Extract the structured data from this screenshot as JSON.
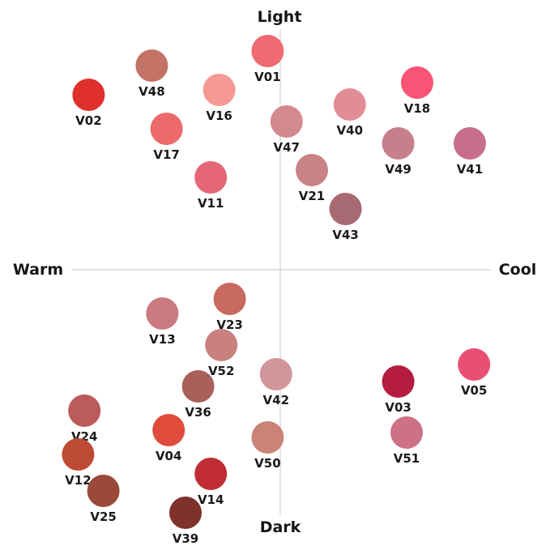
{
  "chart_data": {
    "type": "scatter",
    "title": "",
    "axis_labels": {
      "top": "Light",
      "bottom": "Dark",
      "left": "Warm",
      "right": "Cool"
    },
    "xlim": [
      -10,
      10
    ],
    "ylim": [
      -10,
      10
    ],
    "grid": false,
    "legend": "none",
    "points": [
      {
        "label": "V01",
        "x": -0.6,
        "y": 9.0,
        "color": "#ef6a72"
      },
      {
        "label": "V48",
        "x": -6.1,
        "y": 8.4,
        "color": "#c27366"
      },
      {
        "label": "V02",
        "x": -9.1,
        "y": 7.2,
        "color": "#e0302c"
      },
      {
        "label": "V16",
        "x": -2.9,
        "y": 7.4,
        "color": "#f49a93"
      },
      {
        "label": "V18",
        "x": 6.5,
        "y": 7.7,
        "color": "#f95376"
      },
      {
        "label": "V40",
        "x": 3.3,
        "y": 6.8,
        "color": "#e18d96"
      },
      {
        "label": "V17",
        "x": -5.4,
        "y": 5.8,
        "color": "#ec6a6a"
      },
      {
        "label": "V47",
        "x": 0.3,
        "y": 6.1,
        "color": "#d38a8f"
      },
      {
        "label": "V49",
        "x": 5.6,
        "y": 5.2,
        "color": "#c7808b"
      },
      {
        "label": "V41",
        "x": 9.0,
        "y": 5.2,
        "color": "#c86e8c"
      },
      {
        "label": "V11",
        "x": -3.3,
        "y": 3.8,
        "color": "#e56676"
      },
      {
        "label": "V21",
        "x": 1.5,
        "y": 4.1,
        "color": "#c98286"
      },
      {
        "label": "V43",
        "x": 3.1,
        "y": 2.5,
        "color": "#a86a72"
      },
      {
        "label": "V23",
        "x": -2.4,
        "y": -1.2,
        "color": "#c96a5f"
      },
      {
        "label": "V13",
        "x": -5.6,
        "y": -1.8,
        "color": "#cb7a80"
      },
      {
        "label": "V52",
        "x": -2.8,
        "y": -3.1,
        "color": "#c8817f"
      },
      {
        "label": "V42",
        "x": -0.2,
        "y": -4.3,
        "color": "#d1969a"
      },
      {
        "label": "V03",
        "x": 5.6,
        "y": -4.6,
        "color": "#b41c40"
      },
      {
        "label": "V05",
        "x": 9.2,
        "y": -3.9,
        "color": "#e94f72"
      },
      {
        "label": "V36",
        "x": -3.9,
        "y": -4.8,
        "color": "#a9605a"
      },
      {
        "label": "V24",
        "x": -9.3,
        "y": -5.8,
        "color": "#bb5b5b"
      },
      {
        "label": "V04",
        "x": -5.3,
        "y": -6.6,
        "color": "#e04b3c"
      },
      {
        "label": "V50",
        "x": -0.6,
        "y": -6.9,
        "color": "#c98477"
      },
      {
        "label": "V51",
        "x": 6.0,
        "y": -6.7,
        "color": "#cd7186"
      },
      {
        "label": "V12",
        "x": -9.6,
        "y": -7.6,
        "color": "#bd4b33"
      },
      {
        "label": "V14",
        "x": -3.3,
        "y": -8.4,
        "color": "#c02d35"
      },
      {
        "label": "V25",
        "x": -8.4,
        "y": -9.1,
        "color": "#9b4a3a"
      },
      {
        "label": "V39",
        "x": -4.5,
        "y": -10.0,
        "color": "#7e322b"
      }
    ]
  }
}
